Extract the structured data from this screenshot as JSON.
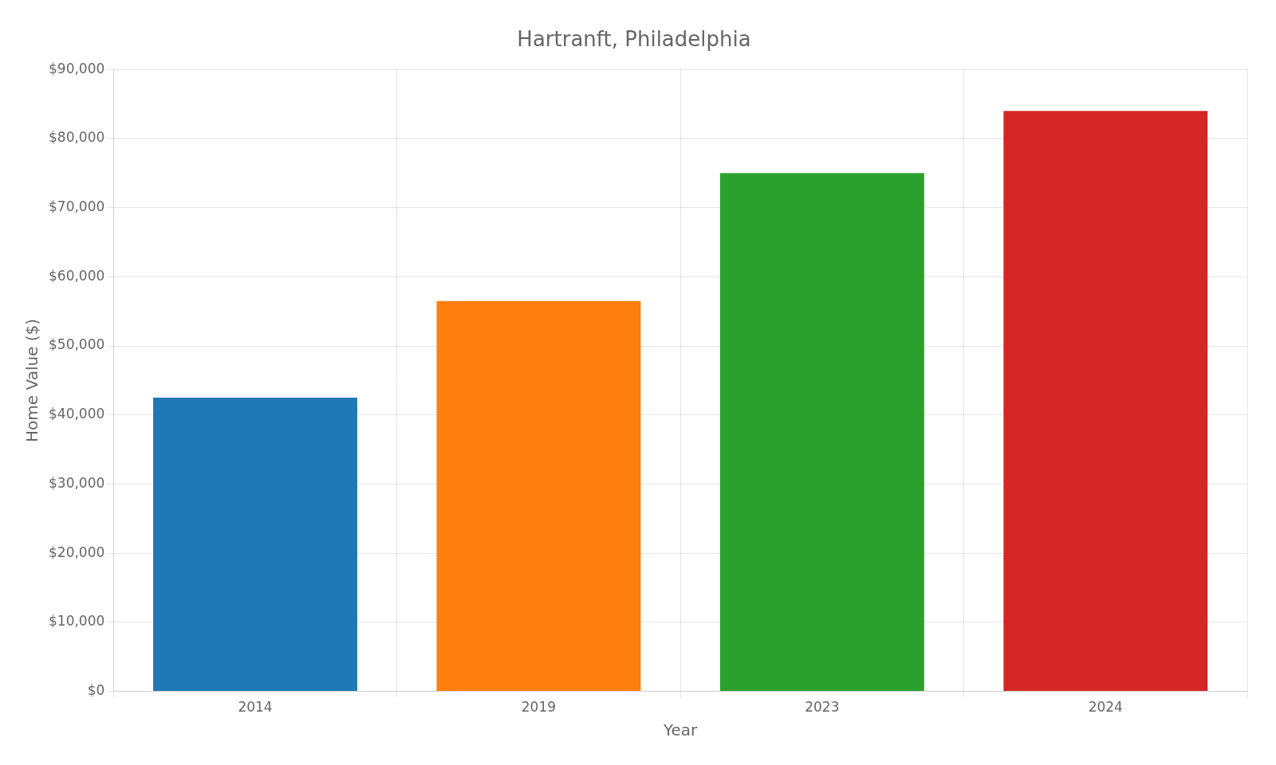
{
  "chart_data": {
    "type": "bar",
    "title": "Hartranft, Philadelphia",
    "xlabel": "Year",
    "ylabel": "Home Value ($)",
    "categories": [
      "2014",
      "2019",
      "2023",
      "2024"
    ],
    "values": [
      42500,
      56500,
      75000,
      84000
    ],
    "colors": [
      "#1f77b4",
      "#ff7f0e",
      "#2ca02c",
      "#d62728"
    ],
    "ylim": [
      0,
      90000
    ],
    "yticks": [
      {
        "value": 0,
        "label": "$0"
      },
      {
        "value": 10000,
        "label": "$10,000"
      },
      {
        "value": 20000,
        "label": "$20,000"
      },
      {
        "value": 30000,
        "label": "$30,000"
      },
      {
        "value": 40000,
        "label": "$40,000"
      },
      {
        "value": 50000,
        "label": "$50,000"
      },
      {
        "value": 60000,
        "label": "$60,000"
      },
      {
        "value": 70000,
        "label": "$70,000"
      },
      {
        "value": 80000,
        "label": "$80,000"
      },
      {
        "value": 90000,
        "label": "$90,000"
      }
    ],
    "grid": true
  }
}
